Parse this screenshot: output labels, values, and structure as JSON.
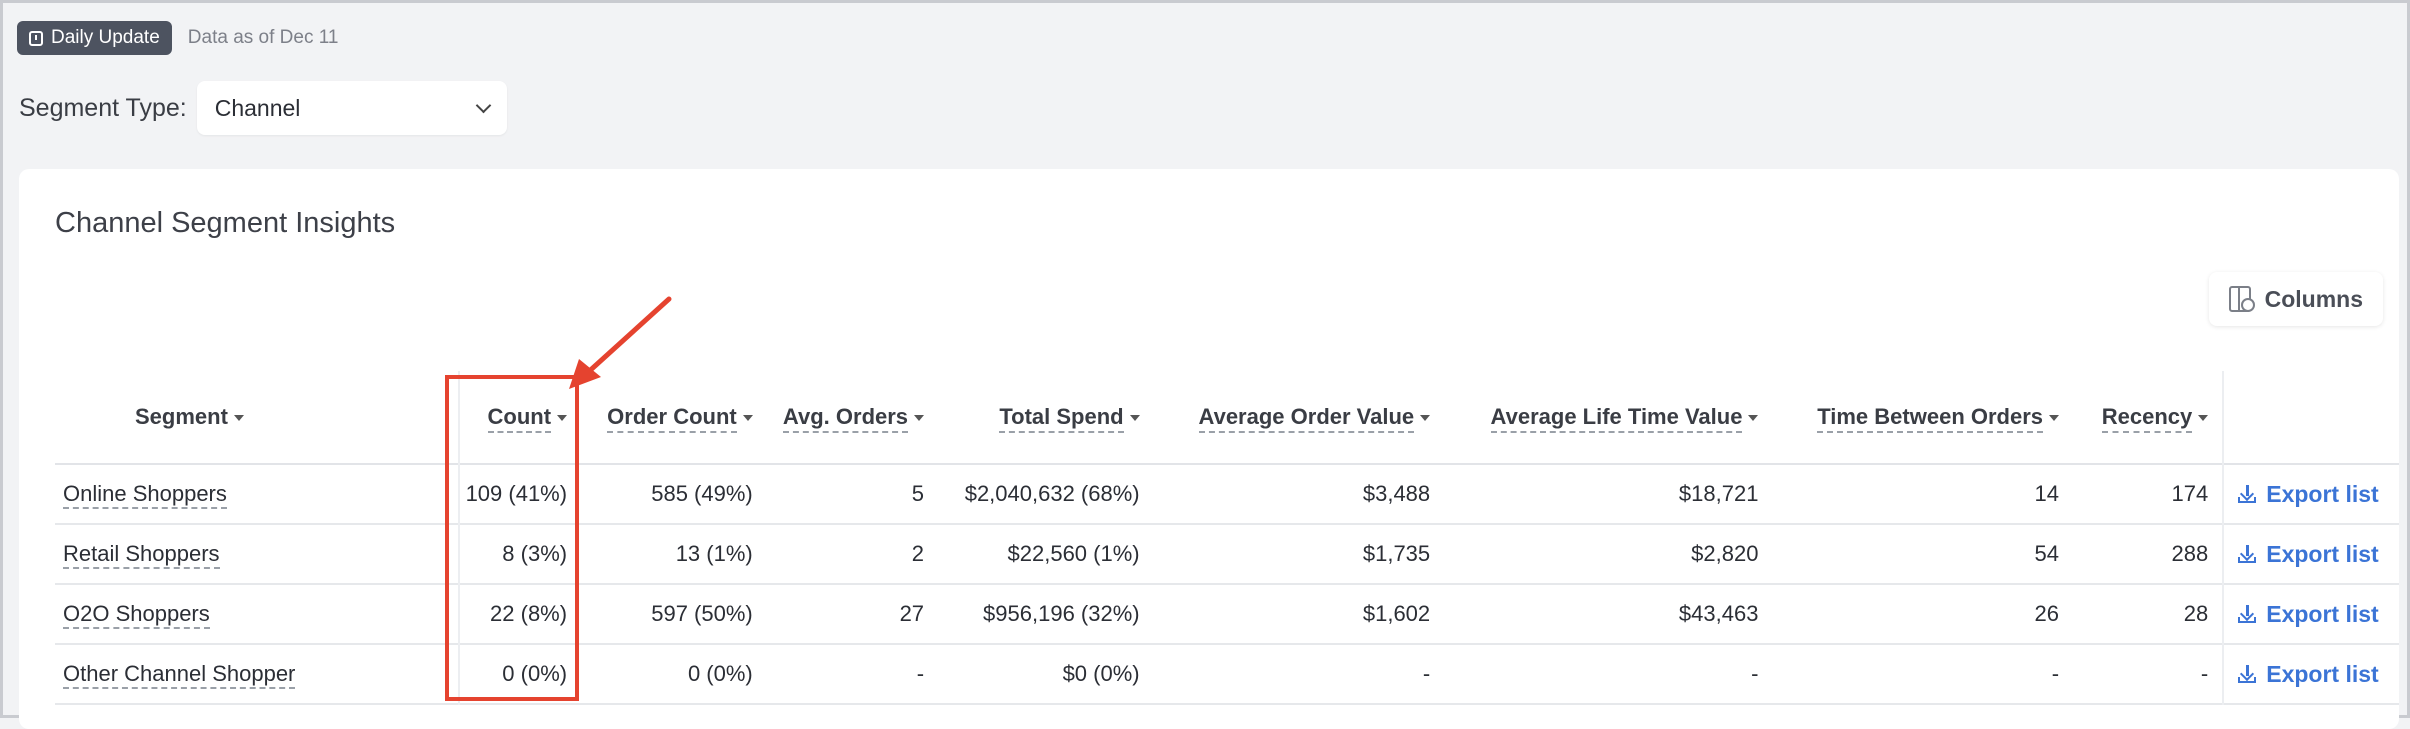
{
  "header": {
    "badge_label": "Daily Update",
    "badge_icon": "calendar-clock-icon",
    "data_as_of": "Data as of Dec 11"
  },
  "segment_type": {
    "label": "Segment Type:",
    "selected": "Channel"
  },
  "card": {
    "title": "Channel Segment Insights",
    "columns_button": "Columns"
  },
  "table": {
    "headers": [
      "Segment",
      "Count",
      "Order Count",
      "Avg. Orders",
      "Total Spend",
      "Average Order Value",
      "Average Life Time Value",
      "Time Between Orders",
      "Recency"
    ],
    "export_label": "Export list",
    "rows": [
      {
        "segment": "Online Shoppers",
        "count": "109 (41%)",
        "order_count": "585 (49%)",
        "avg_orders": "5",
        "total_spend": "$2,040,632 (68%)",
        "aov": "$3,488",
        "ltv": "$18,721",
        "tbo": "14",
        "recency": "174"
      },
      {
        "segment": "Retail Shoppers",
        "count": "8 (3%)",
        "order_count": "13 (1%)",
        "avg_orders": "2",
        "total_spend": "$22,560 (1%)",
        "aov": "$1,735",
        "ltv": "$2,820",
        "tbo": "54",
        "recency": "288"
      },
      {
        "segment": "O2O Shoppers",
        "count": "22 (8%)",
        "order_count": "597 (50%)",
        "avg_orders": "27",
        "total_spend": "$956,196 (32%)",
        "aov": "$1,602",
        "ltv": "$43,463",
        "tbo": "26",
        "recency": "28"
      },
      {
        "segment": "Other Channel Shopper",
        "count": "0 (0%)",
        "order_count": "0 (0%)",
        "avg_orders": "-",
        "total_spend": "$0 (0%)",
        "aov": "-",
        "ltv": "-",
        "tbo": "-",
        "recency": "-"
      }
    ]
  },
  "annotation": {
    "color": "#e5432f"
  }
}
